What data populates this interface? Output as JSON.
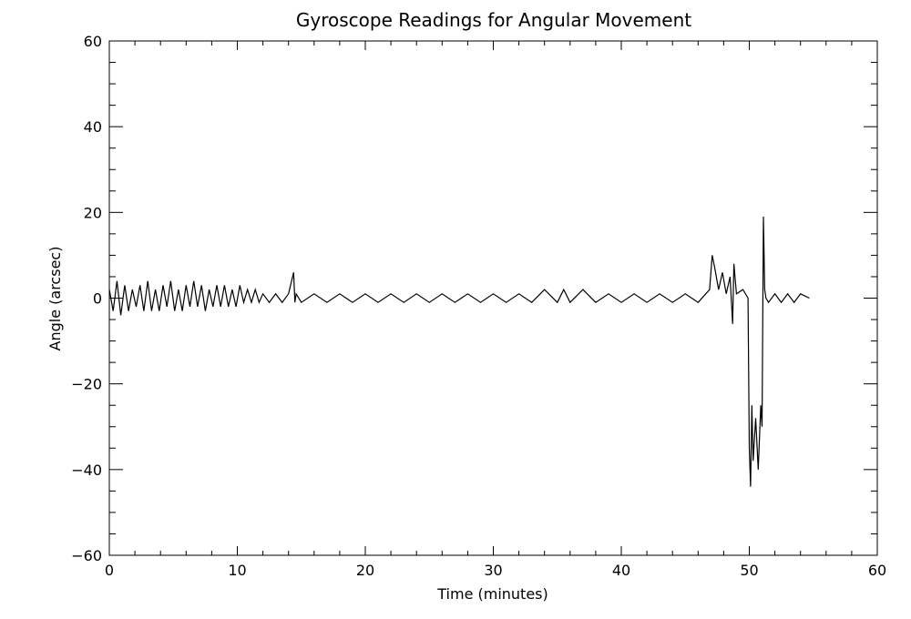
{
  "chart_data": {
    "type": "line",
    "title": "Gyroscope Readings for Angular Movement",
    "xlabel": "Time (minutes)",
    "ylabel": "Angle (arcsec)",
    "xlim": [
      0,
      60
    ],
    "ylim": [
      -60,
      60
    ],
    "xticks": [
      0,
      10,
      20,
      30,
      40,
      50,
      60
    ],
    "yticks": [
      -60,
      -40,
      -20,
      0,
      20,
      40,
      60
    ],
    "xtick_labels": [
      "0",
      "10",
      "20",
      "30",
      "40",
      "50",
      "60"
    ],
    "ytick_labels": [
      "−60",
      "−40",
      "−20",
      "0",
      "20",
      "40",
      "60"
    ],
    "grid": false,
    "color": "#000000",
    "series": [
      {
        "x": [
          0.0,
          0.3,
          0.6,
          0.9,
          1.2,
          1.5,
          1.8,
          2.1,
          2.4,
          2.7,
          3.0,
          3.3,
          3.6,
          3.9,
          4.2,
          4.5,
          4.8,
          5.1,
          5.4,
          5.7,
          6.0,
          6.3,
          6.6,
          6.9,
          7.2,
          7.5,
          7.8,
          8.1,
          8.4,
          8.7,
          9.0,
          9.3,
          9.6,
          9.9,
          10.2,
          10.5,
          10.8,
          11.1,
          11.4,
          11.7,
          12.0,
          12.5,
          13.0,
          13.5,
          14.0,
          14.4,
          14.5,
          14.6,
          15.0,
          16.0,
          17.0,
          18.0,
          19.0,
          20.0,
          21.0,
          22.0,
          23.0,
          24.0,
          25.0,
          26.0,
          27.0,
          28.0,
          29.0,
          30.0,
          31.0,
          32.0,
          33.0,
          34.0,
          35.0,
          35.5,
          36.0,
          37.0,
          38.0,
          39.0,
          40.0,
          41.0,
          42.0,
          43.0,
          44.0,
          45.0,
          46.0,
          46.9,
          47.1,
          47.3,
          47.6,
          47.9,
          48.2,
          48.5,
          48.7,
          48.8,
          49.0,
          49.5,
          49.9,
          50.0,
          50.1,
          50.2,
          50.3,
          50.5,
          50.7,
          50.9,
          51.0,
          51.1,
          51.2,
          51.3,
          51.5,
          52.0,
          52.5,
          53.0,
          53.5,
          54.0,
          54.7
        ],
        "y": [
          2,
          -3,
          4,
          -4,
          3,
          -3,
          2,
          -2,
          3,
          -3,
          4,
          -3,
          2,
          -3,
          3,
          -2,
          4,
          -3,
          2,
          -3,
          3,
          -2,
          4,
          -2,
          3,
          -3,
          2,
          -2,
          3,
          -2,
          3,
          -2,
          2,
          -2,
          3,
          -1,
          2,
          -1,
          2,
          -1,
          1,
          -1,
          1,
          -1,
          1,
          6,
          -1,
          1,
          -1,
          1,
          -1,
          1,
          -1,
          1,
          -1,
          1,
          -1,
          1,
          -1,
          1,
          -1,
          1,
          -1,
          1,
          -1,
          1,
          -1,
          2,
          -1,
          2,
          -1,
          2,
          -1,
          1,
          -1,
          1,
          -1,
          1,
          -1,
          1,
          -1,
          2,
          10,
          7,
          2,
          6,
          1,
          5,
          -6,
          8,
          1,
          2,
          0,
          -35,
          -44,
          -25,
          -38,
          -28,
          -40,
          -25,
          -30,
          19,
          2,
          0,
          -1,
          1,
          -1,
          1,
          -1,
          1,
          0
        ]
      }
    ]
  }
}
